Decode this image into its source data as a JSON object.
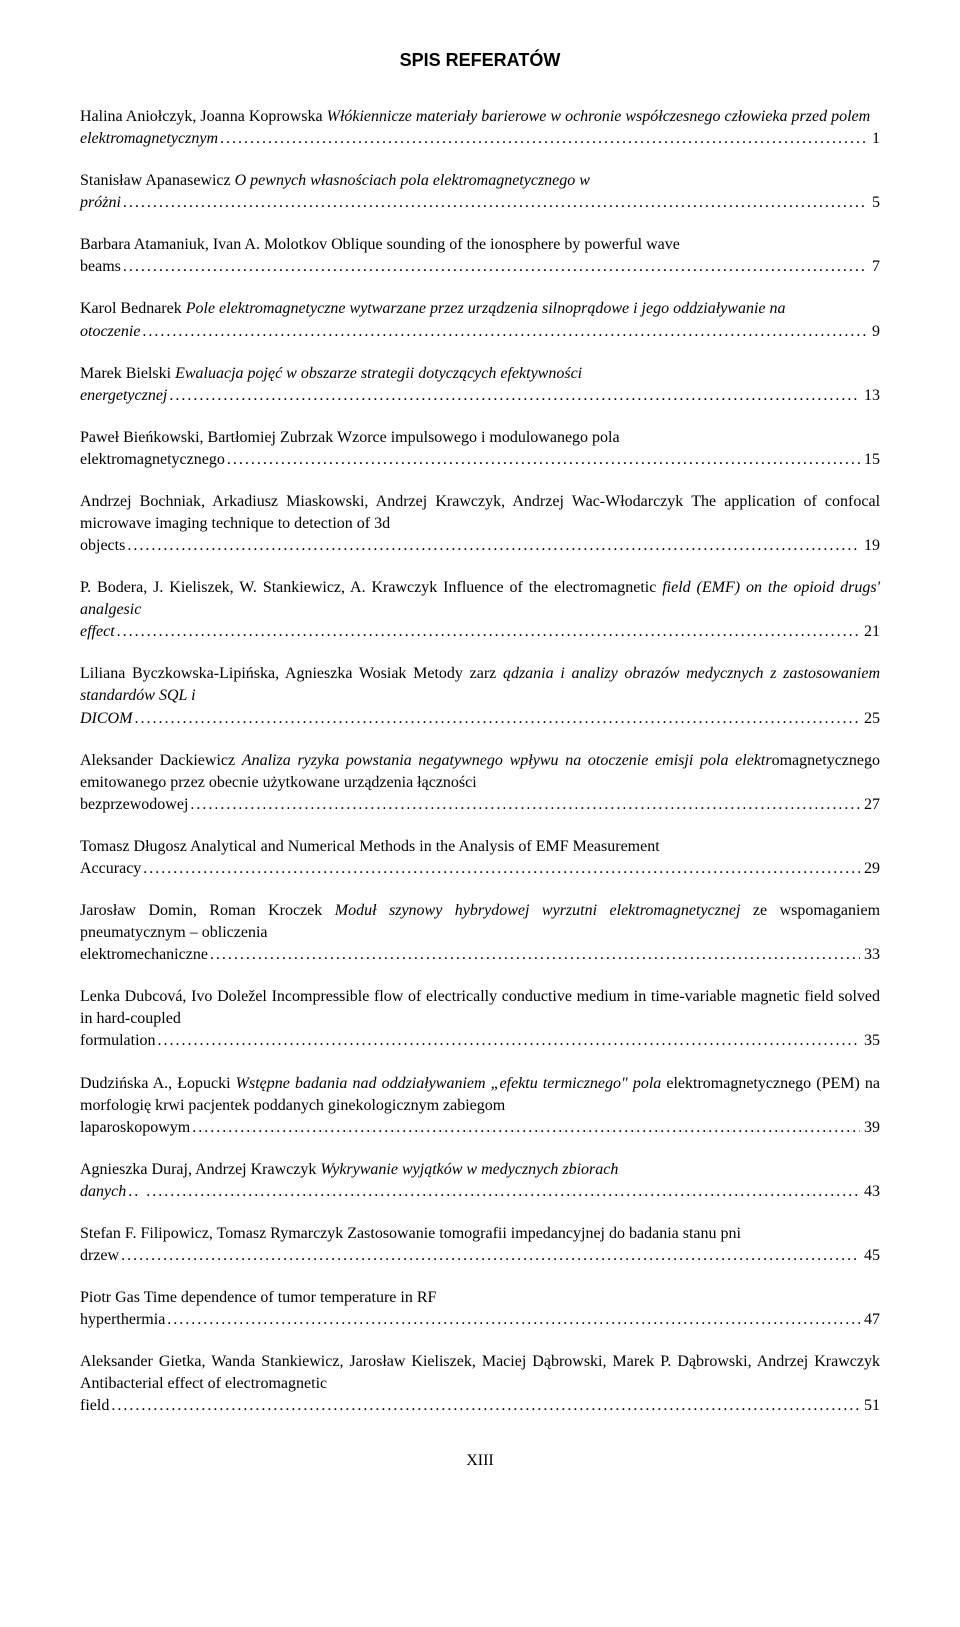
{
  "title": "SPIS REFERATÓW",
  "footer": "XIII",
  "dots": "...............................................................................................................................................................................",
  "entries": [
    {
      "authors": "Halina Aniołczyk, Joanna Koprowska",
      "title": "Włókiennicze materiały barierowe w ochronie współczesnego człowieka przed polem elektromagnetycznym",
      "titleItalic": true,
      "page": "1"
    },
    {
      "authors": "Stanisław Apanasewicz",
      "title": "O pewnych własnościach pola elektromagnetycznego w próżni",
      "titleItalic": true,
      "page": "5"
    },
    {
      "authors": "Barbara Atamaniuk,  Ivan A. Molotkov",
      "title": "Oblique sounding of the ionosphere by powerful wave beams",
      "titleItalic": false,
      "page": "7"
    },
    {
      "authors": "Karol Bednarek",
      "title": "Pole elektromagnetyczne wytwarzane przez urządzenia silnoprądowe i jego oddziaływanie na otoczenie",
      "titleItalic": true,
      "page": "9"
    },
    {
      "authors": "Marek Bielski",
      "title": "Ewaluacja pojęć w obszarze strategii  dotyczących efektywności energetycznej",
      "titleItalic": true,
      "page": "13"
    },
    {
      "authors": "Paweł Bieńkowski, Bartłomiej Zubrzak",
      "title": "Wzorce impulsowego i modulowanego pola elektromagnetycznego",
      "titleItalic": false,
      "page": "15"
    },
    {
      "authors": "Andrzej Bochniak, Arkadiusz Miaskowski, Andrzej Krawczyk, Andrzej Wac-Włodarczyk",
      "title": "The application of confocal microwave imaging technique to detection  of 3d objects",
      "titleItalic": false,
      "page": "19"
    },
    {
      "authors": "P. Bodera, J. Kieliszek, W. Stankiewicz, A. Krawczyk",
      "title": "Influence of the electromagnetic field (EMF) on the opioid drugs' analgesic effect",
      "titleMixed": true,
      "titleNormalPrefix": "Influence of the electromagnetic",
      "titleItalicSuffix": "field (EMF) on the opioid drugs' analgesic effect",
      "page": "21"
    },
    {
      "authors": "Liliana Byczkowska-Lipińska, Agnieszka Wosiak",
      "title": "Metody zarządzania i analizy obrazów medycznych  z zastosowaniem standardów SQL i DICOM",
      "titleMixed": true,
      "titleNormalPrefix": "Metody zarz",
      "titleItalicSuffix": "ądzania i analizy obrazów medycznych  z zastosowaniem standardów SQL i DICOM",
      "page": "25"
    },
    {
      "authors": "Aleksander Dackiewicz",
      "title": "Analiza ryzyka powstania negatywnego wpływu na otoczenie emisji  pola elektromagnetycznego emitowanego przez obecnie użytkowane urządzenia łączności bezprzewodowej",
      "titleMixed": true,
      "titleItalicFirst": true,
      "titleItalicPart": "Analiza ryzyka powstania negatywnego wpływu na otoczenie emisji  pola elektr",
      "titleNormalPart": "omagnetycznego emitowanego przez obecnie użytkowane urządzenia łączności bezprzewodowej",
      "page": "27"
    },
    {
      "authors": "Tomasz Długosz",
      "title": "Analytical and Numerical Methods in the Analysis of EMF Measurement Accuracy",
      "titleItalic": false,
      "page": "29"
    },
    {
      "authors": "Jarosław Domin, Roman Kroczek",
      "title": "Moduł szynowy hybrydowej wyrzutni elektromagnetycznej ze wspomaganiem pneumatycznym – obliczenia elektromechaniczne",
      "titleMixed": true,
      "titleItalicFirst": true,
      "titleItalicPart": "Moduł szynowy hybrydowej wyrzutni elektromagnetycznej",
      "titleNormalPart": " ze wspomaganiem pneumatycznym – obliczenia elektromechaniczne",
      "page": "33"
    },
    {
      "authors": "Lenka Dubcová, Ivo Doležel",
      "title": "Incompressible flow of electrically conductive medium in time-variable magnetic field solved in hard-coupled formulation",
      "titleItalic": false,
      "page": "35"
    },
    {
      "authors": "Dudzińska A., Łopucki ",
      "title": "Wstępne badania nad oddziaływaniem „efektu termicznego\" pola elektromagnetycznego (PEM) na morfologię krwi pacjentek poddanych ginekologicznym zabiegom laparoskopowym",
      "titleMixed": true,
      "titleItalicFirst": true,
      "titleItalicPart": "Wstępne badania nad oddziaływaniem „efektu termicznego\" pola",
      "titleNormalPart": " elektromagnetycznego (PEM) na morfologię krwi pacjentek poddanych ginekologicznym zabiegom laparoskopowym",
      "page": "39"
    },
    {
      "authors": "Agnieszka Duraj, Andrzej Krawczyk",
      "title": "Wykrywanie wyjątków w medycznych zbiorach danych",
      "titleItalic": true,
      "page": "43",
      "dotsPrefix": ".. "
    },
    {
      "authors": "Stefan F. Filipowicz, Tomasz Rymarczyk",
      "title": "Zastosowanie tomografii impedancyjnej  do badania stanu pni drzew",
      "titleItalic": false,
      "page": "45"
    },
    {
      "authors": "Piotr Gas",
      "title": "Time dependence of tumor temperature in RF hyperthermia",
      "titleItalic": false,
      "page": "47"
    },
    {
      "authors": "Aleksander Gietka, Wanda Stankiewicz, Jarosław Kieliszek, Maciej Dąbrowski, Marek P. Dąbrowski, Andrzej Krawczyk",
      "title": "Antibacterial effect of electromagnetic field",
      "titleItalic": false,
      "page": "51"
    }
  ]
}
